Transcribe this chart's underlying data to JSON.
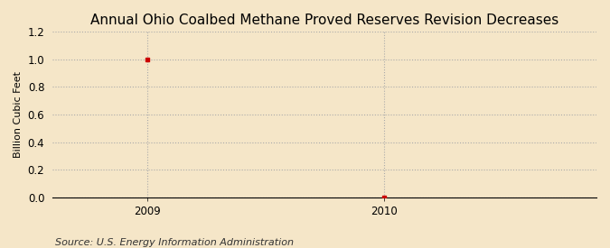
{
  "title": "Annual Ohio Coalbed Methane Proved Reserves Revision Decreases",
  "ylabel": "Billion Cubic Feet",
  "source_text": "Source: U.S. Energy Information Administration",
  "x_data": [
    2009,
    2010
  ],
  "y_data": [
    1.0,
    0.0
  ],
  "xlim": [
    2008.6,
    2010.9
  ],
  "ylim": [
    0.0,
    1.2
  ],
  "yticks": [
    0.0,
    0.2,
    0.4,
    0.6,
    0.8,
    1.0,
    1.2
  ],
  "xticks": [
    2009,
    2010
  ],
  "point_color": "#cc0000",
  "grid_color": "#aaaaaa",
  "background_color": "#f5e6c8",
  "title_fontsize": 11,
  "label_fontsize": 8,
  "tick_fontsize": 8.5,
  "source_fontsize": 8
}
